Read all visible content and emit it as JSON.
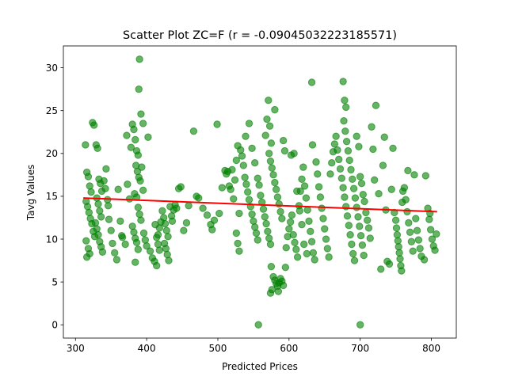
{
  "chart_data": {
    "type": "scatter",
    "title": "Scatter Plot ZC=F (r = -0.09045032223185571)",
    "xlabel": "Predicted Prices",
    "ylabel": "Tavg Values",
    "xlim": [
      283,
      835
    ],
    "ylim": [
      -1.55,
      32.55
    ],
    "x_ticks": [
      300,
      400,
      500,
      600,
      700,
      800
    ],
    "y_ticks": [
      0,
      5,
      10,
      15,
      20,
      25,
      30
    ],
    "grid": false,
    "point_color": "#008000",
    "point_alpha": 0.6,
    "trend_color": "#ff0000",
    "trend_line": {
      "x": [
        311,
        808
      ],
      "y": [
        14.8,
        13.2
      ]
    },
    "points": [
      [
        314,
        21.0
      ],
      [
        316,
        17.8
      ],
      [
        318,
        17.3
      ],
      [
        320,
        16.2
      ],
      [
        322,
        15.5
      ],
      [
        315,
        14.4
      ],
      [
        317,
        13.8
      ],
      [
        319,
        13.1
      ],
      [
        321,
        12.4
      ],
      [
        323,
        11.8
      ],
      [
        325,
        10.9
      ],
      [
        327,
        10.3
      ],
      [
        315,
        9.8
      ],
      [
        318,
        8.9
      ],
      [
        320,
        8.3
      ],
      [
        316,
        7.9
      ],
      [
        324,
        23.6
      ],
      [
        326,
        23.3
      ],
      [
        329,
        21.0
      ],
      [
        331,
        20.6
      ],
      [
        333,
        17.0
      ],
      [
        335,
        16.5
      ],
      [
        337,
        15.6
      ],
      [
        330,
        14.8
      ],
      [
        332,
        14.1
      ],
      [
        334,
        13.3
      ],
      [
        336,
        12.6
      ],
      [
        328,
        11.9
      ],
      [
        330,
        11.2
      ],
      [
        332,
        10.5
      ],
      [
        334,
        9.7
      ],
      [
        336,
        9.1
      ],
      [
        338,
        8.5
      ],
      [
        340,
        16.8
      ],
      [
        342,
        15.9
      ],
      [
        345,
        14.6
      ],
      [
        347,
        12.3
      ],
      [
        350,
        11.0
      ],
      [
        352,
        9.5
      ],
      [
        355,
        8.4
      ],
      [
        358,
        7.6
      ],
      [
        343,
        18.2
      ],
      [
        346,
        13.9
      ],
      [
        360,
        15.8
      ],
      [
        363,
        12.1
      ],
      [
        366,
        10.2
      ],
      [
        370,
        9.4
      ],
      [
        373,
        16.4
      ],
      [
        376,
        14.7
      ],
      [
        372,
        22.1
      ],
      [
        378,
        20.7
      ],
      [
        380,
        23.4
      ],
      [
        382,
        22.8
      ],
      [
        384,
        21.6
      ],
      [
        386,
        20.3
      ],
      [
        388,
        19.8
      ],
      [
        385,
        18.6
      ],
      [
        387,
        17.9
      ],
      [
        389,
        17.2
      ],
      [
        391,
        16.8
      ],
      [
        383,
        15.3
      ],
      [
        386,
        14.9
      ],
      [
        388,
        13.7
      ],
      [
        390,
        12.9
      ],
      [
        392,
        12.2
      ],
      [
        380,
        11.5
      ],
      [
        382,
        10.8
      ],
      [
        384,
        10.1
      ],
      [
        386,
        9.6
      ],
      [
        388,
        8.8
      ],
      [
        390,
        31.0
      ],
      [
        389,
        27.5
      ],
      [
        392,
        24.6
      ],
      [
        395,
        23.5
      ],
      [
        393,
        18.4
      ],
      [
        396,
        10.7
      ],
      [
        398,
        9.9
      ],
      [
        400,
        9.2
      ],
      [
        384,
        7.3
      ],
      [
        402,
        21.9
      ],
      [
        405,
        8.6
      ],
      [
        408,
        7.8
      ],
      [
        411,
        7.4
      ],
      [
        414,
        6.9
      ],
      [
        416,
        10.5
      ],
      [
        418,
        11.3
      ],
      [
        420,
        12.0
      ],
      [
        412,
        11.7
      ],
      [
        414,
        10.2
      ],
      [
        416,
        9.4
      ],
      [
        418,
        8.7
      ],
      [
        422,
        13.3
      ],
      [
        424,
        12.5
      ],
      [
        426,
        11.8
      ],
      [
        428,
        11.0
      ],
      [
        430,
        10.3
      ],
      [
        425,
        9.5
      ],
      [
        427,
        8.9
      ],
      [
        429,
        8.2
      ],
      [
        431,
        7.5
      ],
      [
        433,
        13.8
      ],
      [
        435,
        12.7
      ],
      [
        436,
        12.1
      ],
      [
        438,
        13.4
      ],
      [
        440,
        14.0
      ],
      [
        442,
        13.6
      ],
      [
        445,
        15.9
      ],
      [
        448,
        16.1
      ],
      [
        452,
        11.0
      ],
      [
        456,
        11.9
      ],
      [
        459,
        13.9
      ],
      [
        466,
        22.6
      ],
      [
        470,
        15.0
      ],
      [
        473,
        14.8
      ],
      [
        479,
        13.6
      ],
      [
        485,
        12.8
      ],
      [
        490,
        11.7
      ],
      [
        492,
        11.1
      ],
      [
        495,
        12.2
      ],
      [
        499,
        23.4
      ],
      [
        502,
        13.0
      ],
      [
        506,
        16.0
      ],
      [
        510,
        18.0
      ],
      [
        512,
        17.6
      ],
      [
        514,
        17.9
      ],
      [
        516,
        16.2
      ],
      [
        518,
        15.8
      ],
      [
        520,
        18.1
      ],
      [
        522,
        14.7
      ],
      [
        524,
        16.9
      ],
      [
        526,
        19.2
      ],
      [
        528,
        20.9
      ],
      [
        530,
        13.0
      ],
      [
        526,
        10.7
      ],
      [
        528,
        9.5
      ],
      [
        530,
        8.6
      ],
      [
        532,
        20.4
      ],
      [
        534,
        19.7
      ],
      [
        536,
        18.6
      ],
      [
        538,
        17.2
      ],
      [
        540,
        16.4
      ],
      [
        542,
        15.5
      ],
      [
        544,
        14.6
      ],
      [
        546,
        13.8
      ],
      [
        548,
        12.9
      ],
      [
        550,
        12.1
      ],
      [
        552,
        11.4
      ],
      [
        554,
        10.7
      ],
      [
        556,
        9.9
      ],
      [
        539,
        22.0
      ],
      [
        544,
        23.5
      ],
      [
        548,
        20.6
      ],
      [
        552,
        18.9
      ],
      [
        556,
        17.1
      ],
      [
        558,
        16.3
      ],
      [
        560,
        15.1
      ],
      [
        562,
        14.3
      ],
      [
        564,
        13.5
      ],
      [
        566,
        12.6
      ],
      [
        568,
        11.8
      ],
      [
        570,
        10.9
      ],
      [
        572,
        10.1
      ],
      [
        574,
        9.4
      ],
      [
        571,
        26.2
      ],
      [
        569,
        24.0
      ],
      [
        573,
        23.2
      ],
      [
        567,
        22.1
      ],
      [
        575,
        21.2
      ],
      [
        572,
        20.0
      ],
      [
        574,
        19.1
      ],
      [
        576,
        18.3
      ],
      [
        578,
        17.5
      ],
      [
        580,
        16.6
      ],
      [
        582,
        15.8
      ],
      [
        584,
        14.9
      ],
      [
        586,
        14.1
      ],
      [
        588,
        13.2
      ],
      [
        590,
        12.4
      ],
      [
        580,
        25.1
      ],
      [
        592,
        21.5
      ],
      [
        594,
        20.3
      ],
      [
        575,
        6.8
      ],
      [
        578,
        5.6
      ],
      [
        580,
        5.2
      ],
      [
        582,
        4.8
      ],
      [
        584,
        4.5
      ],
      [
        586,
        4.9
      ],
      [
        588,
        5.4
      ],
      [
        590,
        5.1
      ],
      [
        592,
        4.6
      ],
      [
        576,
        4.1
      ],
      [
        574,
        3.7
      ],
      [
        585,
        3.9
      ],
      [
        595,
        6.7
      ],
      [
        596,
        9.0
      ],
      [
        598,
        10.3
      ],
      [
        600,
        11.2
      ],
      [
        602,
        12.0
      ],
      [
        604,
        12.8
      ],
      [
        606,
        10.5
      ],
      [
        608,
        9.6
      ],
      [
        610,
        8.8
      ],
      [
        612,
        7.9
      ],
      [
        614,
        13.9
      ],
      [
        616,
        15.6
      ],
      [
        618,
        17.0
      ],
      [
        620,
        18.4
      ],
      [
        622,
        16.2
      ],
      [
        624,
        14.8
      ],
      [
        626,
        13.4
      ],
      [
        628,
        12.1
      ],
      [
        630,
        10.9
      ],
      [
        632,
        9.7
      ],
      [
        634,
        8.4
      ],
      [
        636,
        7.6
      ],
      [
        603,
        19.8
      ],
      [
        607,
        20.0
      ],
      [
        611,
        15.6
      ],
      [
        615,
        13.3
      ],
      [
        618,
        11.7
      ],
      [
        621,
        9.4
      ],
      [
        625,
        8.3
      ],
      [
        632,
        28.3
      ],
      [
        633,
        21.0
      ],
      [
        638,
        19.0
      ],
      [
        640,
        17.6
      ],
      [
        642,
        16.1
      ],
      [
        644,
        14.9
      ],
      [
        646,
        13.6
      ],
      [
        648,
        12.4
      ],
      [
        650,
        11.2
      ],
      [
        652,
        10.0
      ],
      [
        654,
        8.9
      ],
      [
        656,
        7.9
      ],
      [
        658,
        17.6
      ],
      [
        660,
        18.9
      ],
      [
        662,
        20.2
      ],
      [
        664,
        21.1
      ],
      [
        666,
        22.0
      ],
      [
        668,
        20.4
      ],
      [
        670,
        19.3
      ],
      [
        672,
        18.2
      ],
      [
        674,
        17.1
      ],
      [
        676,
        16.0
      ],
      [
        678,
        14.9
      ],
      [
        680,
        13.8
      ],
      [
        682,
        12.7
      ],
      [
        684,
        11.6
      ],
      [
        686,
        10.5
      ],
      [
        688,
        9.4
      ],
      [
        690,
        8.3
      ],
      [
        692,
        7.5
      ],
      [
        676,
        28.4
      ],
      [
        678,
        26.2
      ],
      [
        680,
        25.4
      ],
      [
        677,
        23.8
      ],
      [
        679,
        22.6
      ],
      [
        681,
        21.4
      ],
      [
        683,
        20.3
      ],
      [
        685,
        19.2
      ],
      [
        687,
        18.1
      ],
      [
        689,
        17.0
      ],
      [
        691,
        15.9
      ],
      [
        693,
        14.8
      ],
      [
        695,
        13.7
      ],
      [
        697,
        12.6
      ],
      [
        699,
        11.5
      ],
      [
        701,
        10.4
      ],
      [
        703,
        9.3
      ],
      [
        705,
        8.1
      ],
      [
        695,
        22.0
      ],
      [
        698,
        20.8
      ],
      [
        700,
        17.3
      ],
      [
        702,
        16.5
      ],
      [
        704,
        15.2
      ],
      [
        706,
        14.4
      ],
      [
        700,
        0.0
      ],
      [
        708,
        13.1
      ],
      [
        710,
        12.2
      ],
      [
        712,
        11.3
      ],
      [
        714,
        10.1
      ],
      [
        716,
        23.1
      ],
      [
        718,
        20.5
      ],
      [
        720,
        16.9
      ],
      [
        722,
        25.6
      ],
      [
        726,
        15.3
      ],
      [
        729,
        6.5
      ],
      [
        732,
        18.6
      ],
      [
        734,
        21.9
      ],
      [
        736,
        13.4
      ],
      [
        738,
        7.4
      ],
      [
        741,
        7.1
      ],
      [
        744,
        15.8
      ],
      [
        746,
        20.6
      ],
      [
        748,
        13.1
      ],
      [
        750,
        12.2
      ],
      [
        751,
        11.3
      ],
      [
        752,
        10.5
      ],
      [
        753,
        9.8
      ],
      [
        754,
        9.1
      ],
      [
        755,
        8.4
      ],
      [
        756,
        7.7
      ],
      [
        757,
        6.9
      ],
      [
        758,
        6.3
      ],
      [
        759,
        14.3
      ],
      [
        760,
        15.6
      ],
      [
        762,
        16.0
      ],
      [
        764,
        14.6
      ],
      [
        766,
        13.2
      ],
      [
        768,
        11.9
      ],
      [
        770,
        10.8
      ],
      [
        772,
        9.7
      ],
      [
        774,
        8.6
      ],
      [
        767,
        18.0
      ],
      [
        776,
        17.5
      ],
      [
        778,
        12.4
      ],
      [
        780,
        11.0
      ],
      [
        782,
        9.9
      ],
      [
        784,
        8.9
      ],
      [
        786,
        8.0
      ],
      [
        790,
        7.6
      ],
      [
        792,
        17.4
      ],
      [
        795,
        13.6
      ],
      [
        797,
        12.3
      ],
      [
        799,
        11.1
      ],
      [
        801,
        10.0
      ],
      [
        803,
        9.2
      ],
      [
        805,
        8.7
      ],
      [
        807,
        10.6
      ],
      [
        798,
        13.0
      ],
      [
        365,
        10.4
      ],
      [
        395,
        15.7
      ],
      [
        557,
        0.0
      ]
    ]
  }
}
